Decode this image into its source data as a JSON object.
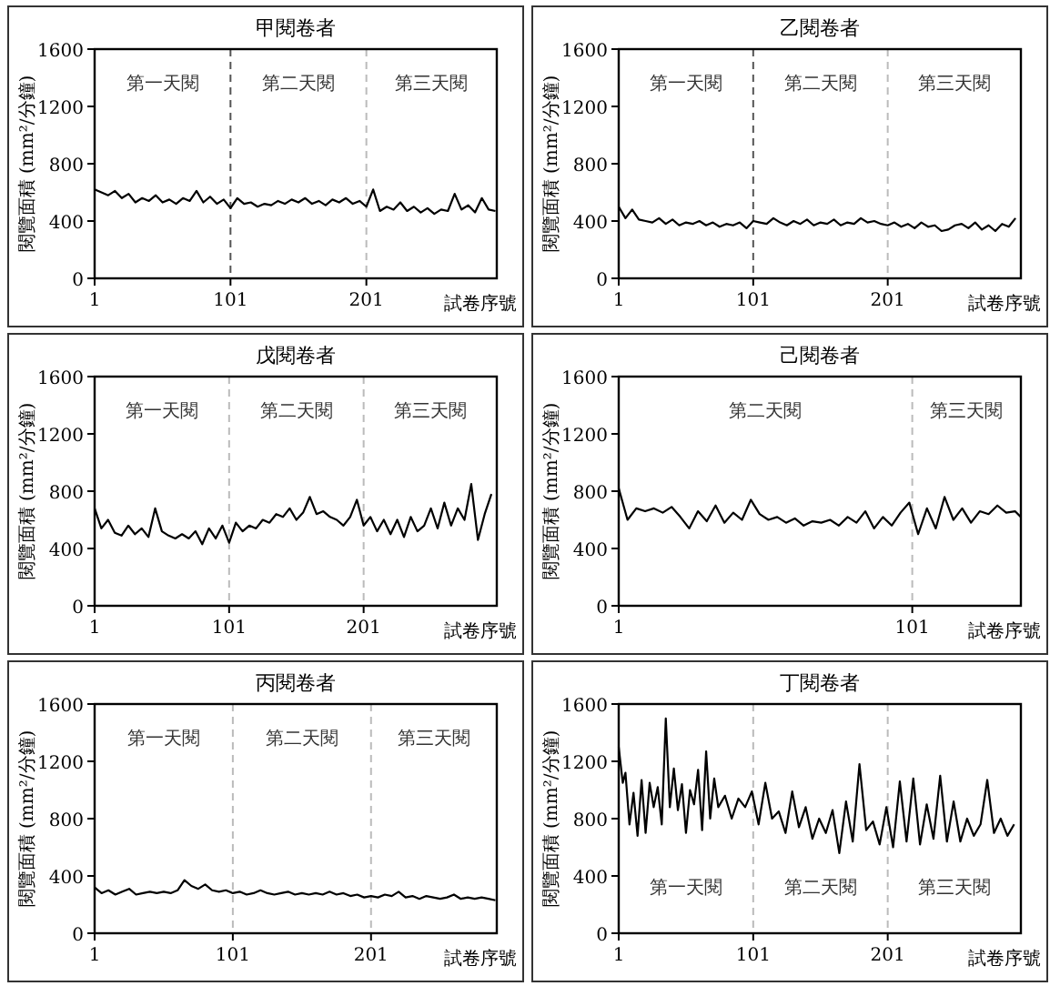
{
  "chart_data": [
    {
      "type": "line",
      "title": "甲閱卷者",
      "xlabel": "試卷序號",
      "ylabel": "閱覽面積 (mm²/分鐘)",
      "color": "#000000",
      "xlim": [
        1,
        297
      ],
      "xticks": [
        1,
        101,
        201
      ],
      "ylim": [
        0,
        1600
      ],
      "yticks": [
        0,
        400,
        800,
        1200,
        1600
      ],
      "ref_lines": [
        {
          "axis": "x",
          "value": 101,
          "color": "#555555",
          "line_style": "dashed"
        },
        {
          "axis": "x",
          "value": 201,
          "color": "#bbbbbb",
          "line_style": "dashed"
        }
      ],
      "annotations": [
        "第一天閱",
        "第二天閱",
        "第三天閱"
      ],
      "x": [
        1,
        6,
        11,
        16,
        21,
        26,
        31,
        36,
        41,
        46,
        51,
        56,
        61,
        66,
        71,
        76,
        81,
        86,
        91,
        96,
        101,
        106,
        111,
        116,
        121,
        126,
        131,
        136,
        141,
        146,
        151,
        156,
        161,
        166,
        171,
        176,
        181,
        186,
        191,
        196,
        201,
        206,
        211,
        216,
        221,
        226,
        231,
        236,
        241,
        246,
        251,
        256,
        261,
        266,
        271,
        276,
        281,
        286,
        291,
        296
      ],
      "values": [
        620,
        600,
        580,
        610,
        560,
        590,
        530,
        560,
        540,
        580,
        530,
        550,
        520,
        560,
        540,
        610,
        530,
        570,
        520,
        550,
        490,
        560,
        520,
        530,
        500,
        520,
        510,
        540,
        520,
        550,
        530,
        560,
        520,
        540,
        510,
        550,
        530,
        560,
        520,
        540,
        500,
        620,
        470,
        500,
        480,
        530,
        470,
        500,
        460,
        490,
        450,
        480,
        470,
        590,
        480,
        510,
        460,
        560,
        480,
        470
      ]
    },
    {
      "type": "line",
      "title": "乙閱卷者",
      "xlabel": "試卷序號",
      "ylabel": "閱覽面積 (mm²/分鐘)",
      "color": "#000000",
      "xlim": [
        1,
        300
      ],
      "xticks": [
        1,
        101,
        201
      ],
      "ylim": [
        0,
        1600
      ],
      "yticks": [
        0,
        400,
        800,
        1200,
        1600
      ],
      "ref_lines": [
        {
          "axis": "x",
          "value": 101,
          "color": "#555555",
          "line_style": "dashed"
        },
        {
          "axis": "x",
          "value": 201,
          "color": "#bbbbbb",
          "line_style": "dashed"
        }
      ],
      "annotations": [
        "第一天閱",
        "第二天閱",
        "第三天閱"
      ],
      "x": [
        1,
        6,
        11,
        16,
        21,
        26,
        31,
        36,
        41,
        46,
        51,
        56,
        61,
        66,
        71,
        76,
        81,
        86,
        91,
        96,
        101,
        106,
        111,
        116,
        121,
        126,
        131,
        136,
        141,
        146,
        151,
        156,
        161,
        166,
        171,
        176,
        181,
        186,
        191,
        196,
        201,
        206,
        211,
        216,
        221,
        226,
        231,
        236,
        241,
        246,
        251,
        256,
        261,
        266,
        271,
        276,
        281,
        286,
        291,
        296
      ],
      "values": [
        500,
        420,
        480,
        410,
        400,
        390,
        420,
        380,
        410,
        370,
        390,
        380,
        400,
        370,
        390,
        360,
        380,
        370,
        390,
        350,
        400,
        390,
        380,
        420,
        390,
        370,
        400,
        380,
        410,
        370,
        390,
        380,
        410,
        370,
        390,
        380,
        420,
        390,
        400,
        380,
        370,
        390,
        360,
        380,
        350,
        390,
        360,
        370,
        330,
        340,
        370,
        380,
        350,
        390,
        340,
        370,
        330,
        380,
        360,
        420
      ]
    },
    {
      "type": "line",
      "title": "戊閱卷者",
      "xlabel": "試卷序號",
      "ylabel": "閱覽面積 (mm²/分鐘)",
      "color": "#000000",
      "xlim": [
        1,
        300
      ],
      "xticks": [
        1,
        101,
        201
      ],
      "ylim": [
        0,
        1600
      ],
      "yticks": [
        0,
        400,
        800,
        1200,
        1600
      ],
      "ref_lines": [
        {
          "axis": "x",
          "value": 101,
          "color": "#bbbbbb",
          "line_style": "dashed"
        },
        {
          "axis": "x",
          "value": 201,
          "color": "#bbbbbb",
          "line_style": "dashed"
        }
      ],
      "annotations": [
        "第一天閱",
        "第二天閱",
        "第三天閱"
      ],
      "x": [
        1,
        6,
        11,
        16,
        21,
        26,
        31,
        36,
        41,
        46,
        51,
        56,
        61,
        66,
        71,
        76,
        81,
        86,
        91,
        96,
        101,
        106,
        111,
        116,
        121,
        126,
        131,
        136,
        141,
        146,
        151,
        156,
        161,
        166,
        171,
        176,
        181,
        186,
        191,
        196,
        201,
        206,
        211,
        216,
        221,
        226,
        231,
        236,
        241,
        246,
        251,
        256,
        261,
        266,
        271,
        276,
        281,
        286,
        291,
        296
      ],
      "values": [
        680,
        540,
        600,
        510,
        490,
        560,
        500,
        540,
        480,
        680,
        520,
        490,
        470,
        500,
        470,
        520,
        430,
        540,
        470,
        560,
        440,
        580,
        520,
        560,
        540,
        600,
        580,
        640,
        620,
        680,
        600,
        650,
        760,
        640,
        660,
        620,
        600,
        560,
        620,
        740,
        560,
        620,
        520,
        600,
        500,
        600,
        480,
        620,
        520,
        560,
        680,
        540,
        720,
        560,
        680,
        600,
        850,
        460,
        640,
        780
      ]
    },
    {
      "type": "line",
      "title": "己閱卷者",
      "xlabel": "試卷序號",
      "ylabel": "閱覽面積 (mm²/分鐘)",
      "color": "#000000",
      "xlim": [
        1,
        138
      ],
      "xticks": [
        1,
        101
      ],
      "ylim": [
        0,
        1600
      ],
      "yticks": [
        0,
        400,
        800,
        1200,
        1600
      ],
      "ref_lines": [
        {
          "axis": "x",
          "value": 101,
          "color": "#bbbbbb",
          "line_style": "dashed"
        }
      ],
      "annotations": [
        "第二天閱",
        "第三天閱"
      ],
      "x": [
        1,
        4,
        7,
        10,
        13,
        16,
        19,
        22,
        25,
        28,
        31,
        34,
        37,
        40,
        43,
        46,
        49,
        52,
        55,
        58,
        61,
        64,
        67,
        70,
        73,
        76,
        79,
        82,
        85,
        88,
        91,
        94,
        97,
        100,
        103,
        106,
        109,
        112,
        115,
        118,
        121,
        124,
        127,
        130,
        133,
        136,
        138
      ],
      "values": [
        820,
        600,
        680,
        660,
        680,
        650,
        690,
        620,
        540,
        660,
        590,
        700,
        580,
        650,
        600,
        740,
        640,
        600,
        620,
        580,
        610,
        560,
        590,
        580,
        600,
        560,
        620,
        580,
        660,
        540,
        620,
        560,
        650,
        720,
        500,
        680,
        540,
        760,
        600,
        680,
        580,
        660,
        640,
        700,
        650,
        660,
        620
      ]
    },
    {
      "type": "line",
      "title": "丙閱卷者",
      "xlabel": "試卷序號",
      "ylabel": "閱覽面積 (mm²/分鐘)",
      "color": "#000000",
      "xlim": [
        1,
        292
      ],
      "xticks": [
        1,
        101,
        201
      ],
      "ylim": [
        0,
        1600
      ],
      "yticks": [
        0,
        400,
        800,
        1200,
        1600
      ],
      "ref_lines": [
        {
          "axis": "x",
          "value": 101,
          "color": "#bbbbbb",
          "line_style": "dashed"
        },
        {
          "axis": "x",
          "value": 201,
          "color": "#bbbbbb",
          "line_style": "dashed"
        }
      ],
      "annotations": [
        "第一天閱",
        "第二天閱",
        "第三天閱"
      ],
      "x": [
        1,
        6,
        11,
        16,
        21,
        26,
        31,
        36,
        41,
        46,
        51,
        56,
        61,
        66,
        71,
        76,
        81,
        86,
        91,
        96,
        101,
        106,
        111,
        116,
        121,
        126,
        131,
        136,
        141,
        146,
        151,
        156,
        161,
        166,
        171,
        176,
        181,
        186,
        191,
        196,
        201,
        206,
        211,
        216,
        221,
        226,
        231,
        236,
        241,
        246,
        251,
        256,
        261,
        266,
        271,
        276,
        281,
        286,
        291
      ],
      "values": [
        320,
        280,
        300,
        270,
        290,
        310,
        270,
        280,
        290,
        280,
        290,
        280,
        300,
        370,
        330,
        310,
        340,
        300,
        290,
        300,
        280,
        290,
        270,
        280,
        300,
        280,
        270,
        280,
        290,
        270,
        280,
        270,
        280,
        270,
        290,
        270,
        280,
        260,
        270,
        250,
        260,
        250,
        270,
        260,
        290,
        250,
        260,
        240,
        260,
        250,
        240,
        250,
        270,
        240,
        250,
        240,
        250,
        240,
        230
      ]
    },
    {
      "type": "line",
      "title": "丁閱卷者",
      "xlabel": "試卷序號",
      "ylabel": "閱覽面積 (mm²/分鐘)",
      "color": "#000000",
      "xlim": [
        1,
        300
      ],
      "xticks": [
        1,
        101,
        201
      ],
      "ylim": [
        0,
        1600
      ],
      "yticks": [
        0,
        400,
        800,
        1200,
        1600
      ],
      "ref_lines": [
        {
          "axis": "x",
          "value": 101,
          "color": "#bbbbbb",
          "line_style": "dashed"
        },
        {
          "axis": "x",
          "value": 201,
          "color": "#bbbbbb",
          "line_style": "dashed"
        }
      ],
      "annotations": [
        "第一天閱",
        "第二天閱",
        "第三天閱"
      ],
      "x": [
        1,
        4,
        6,
        9,
        12,
        15,
        18,
        21,
        24,
        27,
        30,
        33,
        36,
        39,
        42,
        45,
        48,
        51,
        54,
        57,
        60,
        63,
        66,
        69,
        72,
        75,
        80,
        85,
        90,
        95,
        100,
        105,
        110,
        115,
        120,
        125,
        130,
        135,
        140,
        145,
        150,
        155,
        160,
        165,
        170,
        175,
        180,
        185,
        190,
        195,
        200,
        205,
        210,
        215,
        220,
        225,
        230,
        235,
        240,
        245,
        250,
        255,
        260,
        265,
        270,
        275,
        280,
        285,
        290,
        295
      ],
      "values": [
        1300,
        1050,
        1120,
        760,
        980,
        680,
        1070,
        700,
        1050,
        880,
        1020,
        760,
        1500,
        880,
        1150,
        860,
        1040,
        700,
        1000,
        900,
        1140,
        720,
        1270,
        800,
        1080,
        880,
        960,
        800,
        940,
        880,
        990,
        760,
        1050,
        800,
        850,
        700,
        990,
        740,
        880,
        660,
        800,
        700,
        860,
        560,
        920,
        640,
        1180,
        720,
        780,
        620,
        880,
        600,
        1060,
        640,
        1080,
        620,
        900,
        660,
        1100,
        640,
        920,
        640,
        800,
        680,
        760,
        1070,
        700,
        800,
        680,
        760
      ]
    }
  ]
}
